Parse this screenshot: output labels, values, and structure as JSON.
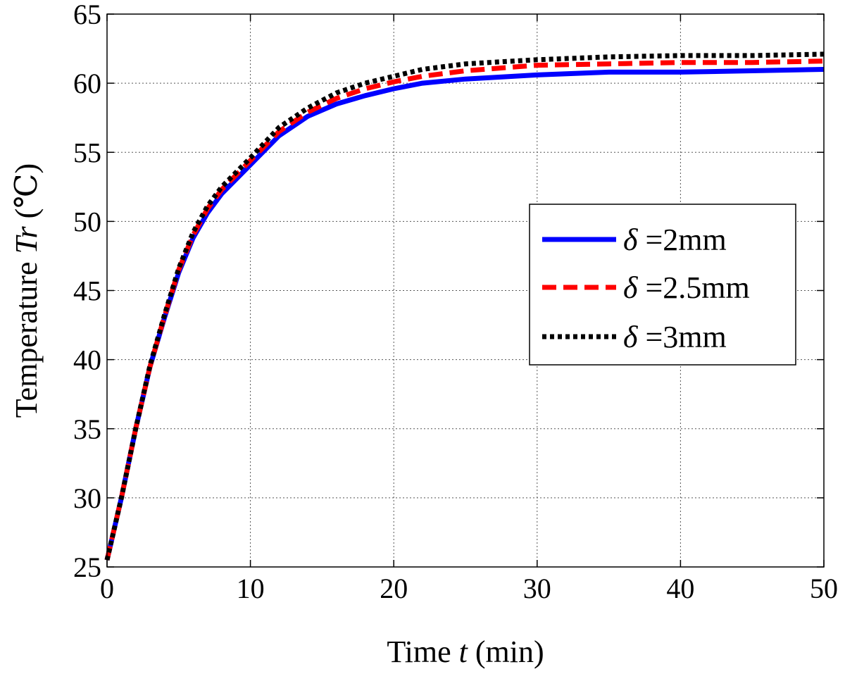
{
  "chart_data": {
    "type": "line",
    "title": "",
    "xlabel": {
      "prefix": "Time ",
      "var": "t",
      "suffix": " (min)"
    },
    "ylabel": {
      "prefix": "Temperature ",
      "var": "Tr",
      "suffix": " (℃)"
    },
    "xlim": [
      0,
      50
    ],
    "ylim": [
      25,
      65
    ],
    "xticks": [
      0,
      10,
      20,
      30,
      40,
      50
    ],
    "yticks": [
      25,
      30,
      35,
      40,
      45,
      50,
      55,
      60,
      65
    ],
    "grid": true,
    "legend_position": "right-center",
    "colors": {
      "series_1": "#0000ff",
      "series_2": "#ff0000",
      "series_3": "#000000"
    },
    "series": [
      {
        "symbol": "δ",
        "label": " =2mm",
        "style": "solid",
        "x": [
          0,
          1,
          2,
          3,
          4,
          5,
          6,
          7,
          8,
          10,
          12,
          14,
          16,
          18,
          20,
          22,
          25,
          30,
          35,
          40,
          45,
          50
        ],
        "y": [
          25.5,
          30.0,
          35.0,
          39.5,
          43.0,
          46.3,
          48.8,
          50.6,
          52.0,
          54.1,
          56.2,
          57.6,
          58.5,
          59.1,
          59.6,
          60.0,
          60.3,
          60.6,
          60.8,
          60.8,
          60.9,
          61.0
        ]
      },
      {
        "symbol": "δ",
        "label": " =2.5mm",
        "style": "dashed",
        "x": [
          0,
          1,
          2,
          3,
          4,
          5,
          6,
          7,
          8,
          10,
          12,
          14,
          16,
          18,
          20,
          22,
          25,
          30,
          35,
          40,
          45,
          50
        ],
        "y": [
          25.5,
          30.0,
          35.0,
          39.5,
          43.1,
          46.5,
          49.0,
          50.9,
          52.3,
          54.4,
          56.5,
          57.9,
          58.9,
          59.6,
          60.1,
          60.5,
          60.9,
          61.3,
          61.4,
          61.5,
          61.5,
          61.6
        ]
      },
      {
        "symbol": "δ",
        "label": " =3mm",
        "style": "dotted",
        "x": [
          0,
          1,
          2,
          3,
          4,
          5,
          6,
          7,
          8,
          10,
          12,
          14,
          16,
          18,
          20,
          22,
          25,
          30,
          35,
          40,
          45,
          50
        ],
        "y": [
          25.5,
          30.0,
          35.0,
          39.6,
          43.2,
          46.6,
          49.2,
          51.1,
          52.5,
          54.6,
          56.8,
          58.2,
          59.3,
          60.0,
          60.5,
          61.0,
          61.4,
          61.7,
          61.9,
          62.0,
          62.0,
          62.1
        ]
      }
    ]
  }
}
